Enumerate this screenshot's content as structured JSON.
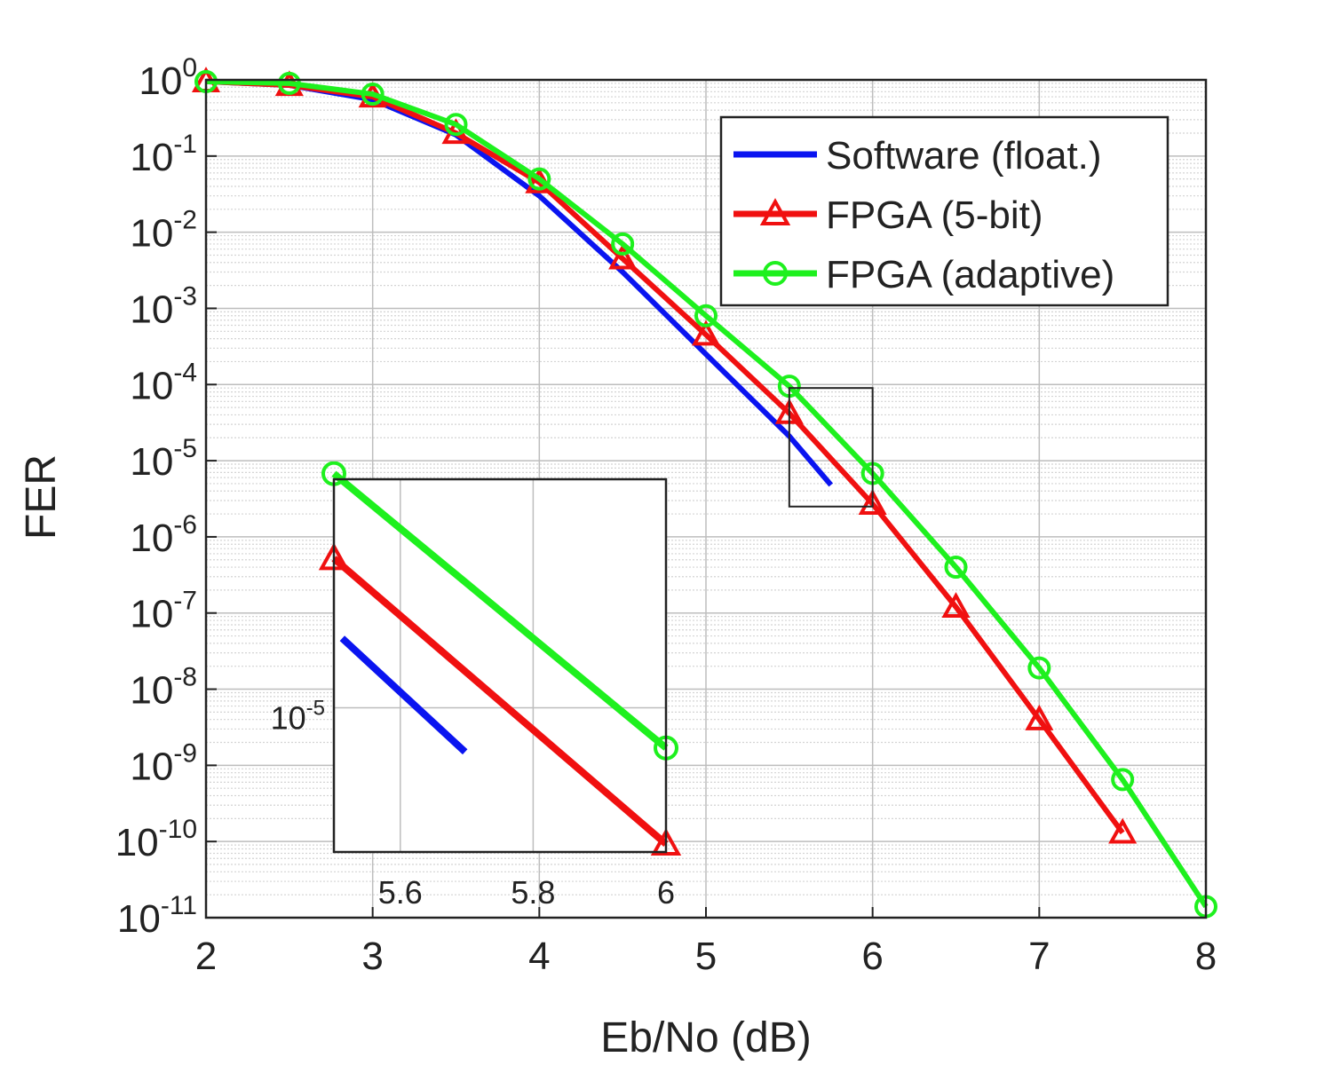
{
  "chart_data": {
    "type": "line",
    "xlabel": "Eb/No (dB)",
    "ylabel": "FER",
    "xlim": [
      2,
      8
    ],
    "ylim": [
      1e-11,
      1
    ],
    "yscale": "log",
    "grid": true,
    "legend_position": "top-right",
    "x_ticks": [
      "2",
      "3",
      "4",
      "5",
      "6",
      "7",
      "8"
    ],
    "y_ticks": [
      {
        "base": "10",
        "exp": "0",
        "value": 1
      },
      {
        "base": "10",
        "exp": "-1",
        "value": 0.1
      },
      {
        "base": "10",
        "exp": "-2",
        "value": 0.01
      },
      {
        "base": "10",
        "exp": "-3",
        "value": 0.001
      },
      {
        "base": "10",
        "exp": "-4",
        "value": 0.0001
      },
      {
        "base": "10",
        "exp": "-5",
        "value": 1e-05
      },
      {
        "base": "10",
        "exp": "-6",
        "value": 1e-06
      },
      {
        "base": "10",
        "exp": "-7",
        "value": 1e-07
      },
      {
        "base": "10",
        "exp": "-8",
        "value": 1e-08
      },
      {
        "base": "10",
        "exp": "-9",
        "value": 1e-09
      },
      {
        "base": "10",
        "exp": "-10",
        "value": 1e-10
      },
      {
        "base": "10",
        "exp": "-11",
        "value": 1e-11
      }
    ],
    "series": [
      {
        "name": "Software (float.)",
        "color": "#0a14f0",
        "marker": "none",
        "x": [
          2.0,
          2.5,
          3.0,
          3.5,
          4.0,
          4.5,
          5.0,
          5.5,
          5.75
        ],
        "y": [
          0.95,
          0.85,
          0.55,
          0.19,
          0.03,
          0.003,
          0.00025,
          2.1e-05,
          4.8e-06
        ]
      },
      {
        "name": "FPGA (5-bit)",
        "color": "#f01010",
        "marker": "triangle",
        "x": [
          2.0,
          2.5,
          3.0,
          3.5,
          4.0,
          4.5,
          5.0,
          5.5,
          6.0,
          6.5,
          7.0,
          7.5
        ],
        "y": [
          0.95,
          0.85,
          0.6,
          0.2,
          0.045,
          0.0045,
          0.00045,
          4.2e-05,
          2.7e-06,
          1.2e-07,
          4e-09,
          1.3e-10
        ]
      },
      {
        "name": "FPGA (adaptive)",
        "color": "#1ef01e",
        "marker": "circle",
        "x": [
          2.0,
          2.5,
          3.0,
          3.5,
          4.0,
          4.5,
          5.0,
          5.5,
          6.0,
          6.5,
          7.0,
          7.5,
          8.0
        ],
        "y": [
          0.95,
          0.9,
          0.65,
          0.26,
          0.05,
          0.007,
          0.0008,
          9.5e-05,
          6.8e-06,
          4e-07,
          1.9e-08,
          6.5e-10,
          1.4e-11
        ]
      }
    ],
    "inset": {
      "xlim": [
        5.5,
        6.0
      ],
      "ylim": [
        2.5e-06,
        9e-05
      ],
      "x_ticks": [
        "5.6",
        "5.8",
        "6"
      ],
      "y_tick": {
        "base": "10",
        "exp": "-5",
        "value": 1e-05
      },
      "zoom_box": {
        "xlim": [
          5.5,
          6.0
        ],
        "ylim": [
          2.5e-06,
          9e-05
        ]
      }
    }
  }
}
